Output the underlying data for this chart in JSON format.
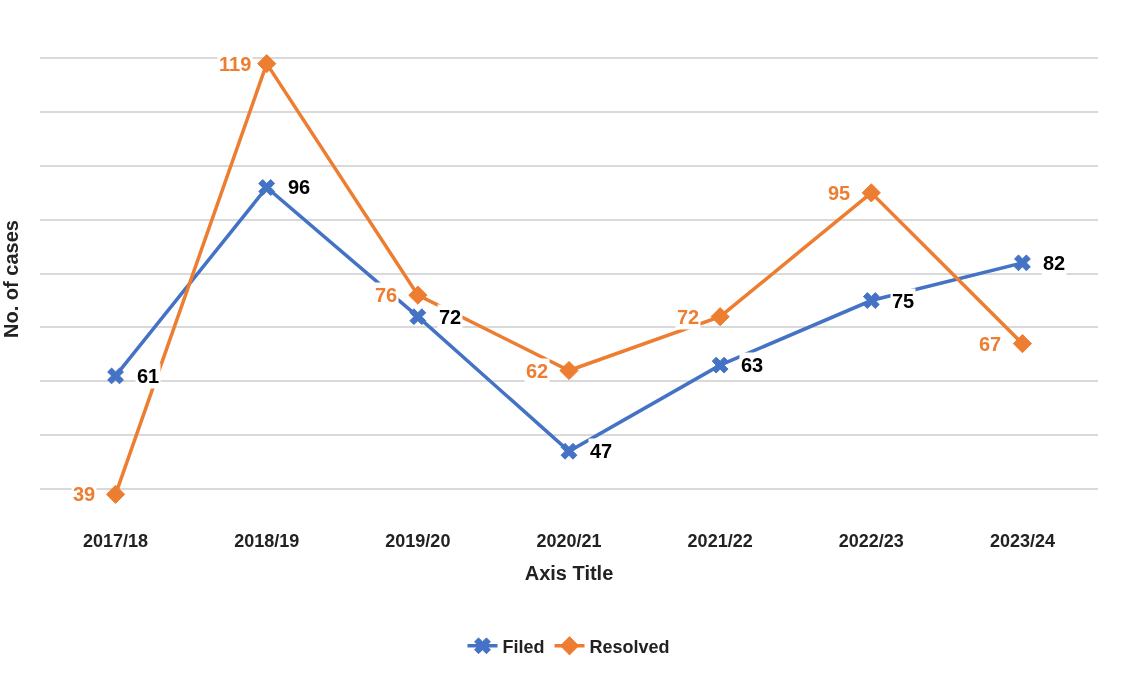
{
  "chart_data": {
    "type": "line",
    "xlabel": "Axis Title",
    "ylabel": "No. of cases",
    "categories": [
      "2017/18",
      "2018/19",
      "2019/20",
      "2020/21",
      "2021/22",
      "2022/23",
      "2023/24"
    ],
    "series": [
      {
        "name": "Filed",
        "color": "#4472c4",
        "marker": "cross",
        "values": [
          61,
          96,
          72,
          47,
          63,
          75,
          82
        ]
      },
      {
        "name": "Resolved",
        "color": "#ed7d31",
        "marker": "diamond",
        "values": [
          39,
          119,
          76,
          62,
          72,
          95,
          67
        ]
      }
    ],
    "tick_labels": "x",
    "grid": "y",
    "legend": "bottom",
    "data_labels": true,
    "line_style": "solid"
  }
}
